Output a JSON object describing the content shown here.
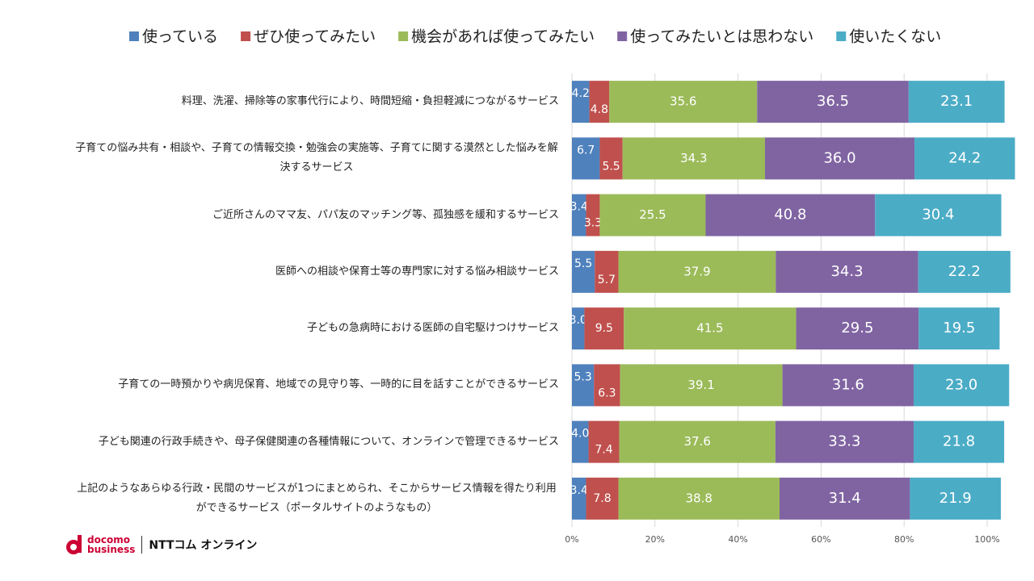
{
  "chart_data": {
    "type": "stacked-bar-horizontal",
    "categories": [
      "料理、洗濯、掃除等の家事代行により、時間短縮・負担軽減につながるサービス",
      "子育ての悩み共有・相談や、子育ての情報交換・勉強会の実施等、子育てに関する漠然とした悩みを解決するサービス",
      "ご近所さんのママ友、パパ友のマッチング等、孤独感を緩和するサービス",
      "医師への相談や保育士等の専門家に対する悩み相談サービス",
      "子どもの急病時における医師の自宅駆けつけサービス",
      "子育ての一時預かりや病児保育、地域での見守り等、一時的に目を話すことができるサービス",
      "子ども関連の行政手続きや、母子保健関連の各種情報について、オンラインで管理できるサービス",
      "上記のようなあらゆる行政・民間のサービスが1つにまとめられ、そこからサービス情報を得たり利用ができるサービス（ポータルサイトのようなもの）"
    ],
    "series": [
      {
        "name": "使っている",
        "color": "#4f81bd",
        "values": [
          4.2,
          6.7,
          3.4,
          5.5,
          3.0,
          5.3,
          4.0,
          3.4
        ],
        "value_labels": [
          "4.2",
          "6.7",
          "3.4",
          "5.5",
          "3.0",
          "5.3",
          "4.0",
          "3.4"
        ]
      },
      {
        "name": "ぜひ使ってみたい",
        "color": "#c0504d",
        "values": [
          4.8,
          5.5,
          3.3,
          5.7,
          9.5,
          6.3,
          7.4,
          7.8
        ],
        "value_labels": [
          "4.8",
          "5.5",
          "3.3",
          "5.7",
          "9.5",
          "6.3",
          "7.4",
          "7.8"
        ]
      },
      {
        "name": "機会があれば使ってみたい",
        "color": "#9bbb59",
        "values": [
          35.6,
          34.3,
          25.5,
          37.9,
          41.5,
          39.1,
          37.6,
          38.8
        ],
        "value_labels": [
          "35.6",
          "34.3",
          "25.5",
          "37.9",
          "41.5",
          "39.1",
          "37.6",
          "38.8"
        ]
      },
      {
        "name": "使ってみたいとは思わない",
        "color": "#8064a2",
        "values": [
          36.5,
          36.0,
          40.8,
          34.3,
          29.5,
          31.6,
          33.3,
          31.4
        ],
        "value_labels": [
          "36.5",
          "36.0",
          "40.8",
          "34.3",
          "29.5",
          "31.6",
          "33.3",
          "31.4"
        ]
      },
      {
        "name": "使いたくない",
        "color": "#4bacc6",
        "values": [
          23.1,
          24.2,
          30.4,
          22.2,
          19.5,
          23.0,
          21.8,
          21.9
        ],
        "value_labels": [
          "23.1",
          "24.2",
          "30.4",
          "22.2",
          "19.5",
          "23.0",
          "21.8",
          "21.9"
        ]
      }
    ],
    "xlim": [
      0,
      100
    ],
    "xticks": [
      {
        "value": 0,
        "label": "0%"
      },
      {
        "value": 20,
        "label": "20%"
      },
      {
        "value": 40,
        "label": "40%"
      },
      {
        "value": 60,
        "label": "60%"
      },
      {
        "value": 80,
        "label": "80%"
      },
      {
        "value": 100,
        "label": "100%"
      }
    ],
    "grid": true,
    "legend": "top"
  },
  "footer": {
    "brand": "docomo",
    "brand_sub": "business",
    "company": "NTTコム オンライン"
  }
}
